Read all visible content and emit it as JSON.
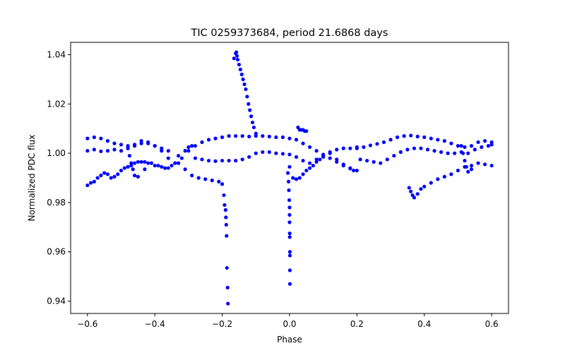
{
  "chart_data": {
    "type": "scatter",
    "title": "TIC 0259373684, period 21.6868 days",
    "xlabel": "Phase",
    "ylabel": "Normalized PDC flux",
    "xlim": [
      -0.65,
      0.65
    ],
    "ylim": [
      0.935,
      1.045
    ],
    "xticks": [
      -0.6,
      -0.4,
      -0.2,
      0.0,
      0.2,
      0.4,
      0.6
    ],
    "xtick_labels": [
      "−0.6",
      "−0.4",
      "−0.2",
      "0.0",
      "0.2",
      "0.4",
      "0.6"
    ],
    "yticks": [
      0.94,
      0.96,
      0.98,
      1.0,
      1.02,
      1.04
    ],
    "ytick_labels": [
      "0.94",
      "0.96",
      "0.98",
      "1.00",
      "1.02",
      "1.04"
    ],
    "grid": false,
    "marker_color": "#0000ff",
    "series": [
      {
        "points": [
          [
            -0.6,
            1.006
          ],
          [
            -0.58,
            1.0065
          ],
          [
            -0.56,
            1.006
          ],
          [
            -0.54,
            1.005
          ],
          [
            -0.52,
            1.004
          ],
          [
            -0.5,
            1.0035
          ],
          [
            -0.48,
            1.003
          ],
          [
            -0.46,
            1.0035
          ],
          [
            -0.44,
            1.005
          ],
          [
            -0.42,
            1.0045
          ],
          [
            -0.4,
            1.003
          ],
          [
            -0.38,
            1.001
          ],
          [
            -0.36,
            0.998
          ],
          [
            -0.34,
            0.996
          ],
          [
            -0.6,
            1.001
          ],
          [
            -0.58,
            1.0015
          ],
          [
            -0.56,
            1.0008
          ],
          [
            -0.54,
            1.001
          ],
          [
            -0.52,
            1.0015
          ],
          [
            -0.5,
            1.001
          ],
          [
            -0.48,
            1.002
          ],
          [
            -0.46,
            1.003
          ],
          [
            -0.44,
            1.004
          ],
          [
            -0.42,
            1.004
          ],
          [
            -0.4,
            1.003
          ],
          [
            -0.38,
            1.002
          ],
          [
            -0.36,
            1.001
          ],
          [
            -0.6,
            0.987
          ],
          [
            -0.59,
            0.988
          ],
          [
            -0.58,
            0.9885
          ],
          [
            -0.57,
            0.99
          ],
          [
            -0.56,
            0.991
          ],
          [
            -0.55,
            0.992
          ],
          [
            -0.54,
            0.9915
          ],
          [
            -0.53,
            0.99
          ],
          [
            -0.52,
            0.9905
          ],
          [
            -0.51,
            0.9915
          ],
          [
            -0.5,
            0.993
          ],
          [
            -0.49,
            0.994
          ],
          [
            -0.48,
            0.9945
          ],
          [
            -0.47,
            0.995
          ],
          [
            -0.46,
            0.996
          ],
          [
            -0.45,
            0.9965
          ],
          [
            -0.44,
            0.9965
          ],
          [
            -0.43,
            0.9965
          ],
          [
            -0.42,
            0.996
          ],
          [
            -0.41,
            0.996
          ],
          [
            -0.4,
            0.995
          ],
          [
            -0.39,
            0.995
          ],
          [
            -0.38,
            0.9945
          ],
          [
            -0.37,
            0.994
          ],
          [
            -0.36,
            0.994
          ],
          [
            -0.35,
            0.995
          ],
          [
            -0.34,
            0.996
          ],
          [
            -0.33,
            0.996
          ],
          [
            -0.48,
            1.002
          ],
          [
            -0.475,
            0.999
          ],
          [
            -0.47,
            0.996
          ],
          [
            -0.465,
            0.9935
          ],
          [
            -0.46,
            0.991
          ],
          [
            -0.45,
            0.9905
          ],
          [
            -0.43,
            0.9935
          ],
          [
            -0.33,
            0.996
          ],
          [
            -0.31,
            0.9935
          ],
          [
            -0.29,
            0.991
          ],
          [
            -0.27,
            0.99
          ],
          [
            -0.25,
            0.9895
          ],
          [
            -0.23,
            0.989
          ],
          [
            -0.21,
            0.9885
          ],
          [
            -0.2,
            0.9875
          ],
          [
            -0.195,
            0.983
          ],
          [
            -0.193,
            0.979
          ],
          [
            -0.19,
            0.977
          ],
          [
            -0.189,
            0.974
          ],
          [
            -0.188,
            0.971
          ],
          [
            -0.187,
            0.9665
          ],
          [
            -0.186,
            0.9535
          ],
          [
            -0.184,
            0.9455
          ],
          [
            -0.183,
            0.939
          ],
          [
            -0.32,
            0.998
          ],
          [
            -0.3,
            1.001
          ],
          [
            -0.28,
            1.003
          ],
          [
            -0.26,
            1.0045
          ],
          [
            -0.24,
            1.0055
          ],
          [
            -0.22,
            1.006
          ],
          [
            -0.2,
            1.0065
          ],
          [
            -0.18,
            1.007
          ],
          [
            -0.16,
            1.007
          ],
          [
            -0.14,
            1.007
          ],
          [
            -0.12,
            1.0068
          ],
          [
            -0.1,
            1.007
          ],
          [
            -0.08,
            1.007
          ],
          [
            -0.06,
            1.0068
          ],
          [
            -0.04,
            1.0065
          ],
          [
            -0.02,
            1.0065
          ],
          [
            0.0,
            1.006
          ],
          [
            0.02,
            1.0055
          ],
          [
            0.04,
            1.004
          ],
          [
            0.06,
            1.0025
          ],
          [
            0.08,
            1.001
          ],
          [
            0.1,
            0.9995
          ],
          [
            0.12,
            0.998
          ],
          [
            0.14,
            0.9965
          ],
          [
            0.16,
            0.995
          ],
          [
            0.18,
            0.9938
          ],
          [
            0.2,
            0.993
          ],
          [
            -0.33,
            0.999
          ],
          [
            -0.31,
            1.001
          ],
          [
            -0.3,
            1.0025
          ],
          [
            -0.29,
            1.003
          ],
          [
            -0.28,
            0.998
          ],
          [
            -0.26,
            0.9975
          ],
          [
            -0.24,
            0.997
          ],
          [
            -0.22,
            0.9968
          ],
          [
            -0.2,
            0.997
          ],
          [
            -0.18,
            0.997
          ],
          [
            -0.16,
            0.997
          ],
          [
            -0.14,
            0.9975
          ],
          [
            -0.12,
            0.9985
          ],
          [
            -0.1,
            1.0
          ],
          [
            -0.08,
            1.0005
          ],
          [
            -0.06,
            1.0005
          ],
          [
            -0.04,
            1.0
          ],
          [
            -0.02,
            0.9998
          ],
          [
            0.0,
            0.9995
          ],
          [
            0.02,
            0.9985
          ],
          [
            0.04,
            0.997
          ],
          [
            0.06,
            0.996
          ],
          [
            0.08,
            0.9975
          ],
          [
            0.1,
            0.999
          ],
          [
            0.12,
            1.0005
          ],
          [
            0.14,
            1.0015
          ],
          [
            0.16,
            1.002
          ],
          [
            0.18,
            1.002
          ],
          [
            0.2,
            1.0025
          ],
          [
            -0.005,
            0.992
          ],
          [
            -0.003,
            0.9885
          ],
          [
            -0.002,
            0.985
          ],
          [
            -0.001,
            0.981
          ],
          [
            0.0,
            0.978
          ],
          [
            0.0,
            0.975
          ],
          [
            0.0,
            0.972
          ],
          [
            0.0005,
            0.9675
          ],
          [
            0.0005,
            0.966
          ],
          [
            0.001,
            0.96
          ],
          [
            0.001,
            0.9585
          ],
          [
            0.001,
            0.9525
          ],
          [
            0.001,
            0.947
          ],
          [
            0.0,
            0.9945
          ],
          [
            0.01,
            0.99
          ],
          [
            0.02,
            0.9895
          ],
          [
            0.03,
            0.99
          ],
          [
            0.04,
            0.9915
          ],
          [
            0.05,
            0.993
          ],
          [
            0.06,
            0.994
          ],
          [
            0.07,
            0.995
          ],
          [
            0.08,
            0.9965
          ],
          [
            0.09,
            0.9975
          ],
          [
            0.1,
            0.9985
          ],
          [
            0.025,
            1.0105
          ],
          [
            0.03,
            1.0095
          ],
          [
            0.035,
            1.0095
          ],
          [
            0.04,
            1.0095
          ],
          [
            0.045,
            1.009
          ],
          [
            0.05,
            1.009
          ],
          [
            0.12,
            1.0
          ],
          [
            0.14,
            0.9975
          ],
          [
            0.16,
            0.9955
          ],
          [
            0.18,
            0.994
          ],
          [
            0.19,
            0.993
          ],
          [
            0.2,
            1.002
          ],
          [
            0.22,
            1.0025
          ],
          [
            0.24,
            1.0032
          ],
          [
            0.26,
            1.0038
          ],
          [
            0.28,
            1.0045
          ],
          [
            0.3,
            1.0055
          ],
          [
            0.32,
            1.0065
          ],
          [
            0.34,
            1.007
          ],
          [
            0.36,
            1.0072
          ],
          [
            0.38,
            1.0068
          ],
          [
            0.4,
            1.0065
          ],
          [
            0.42,
            1.006
          ],
          [
            0.44,
            1.0055
          ],
          [
            0.46,
            1.005
          ],
          [
            0.48,
            1.004
          ],
          [
            0.5,
            1.003
          ],
          [
            0.52,
            1.0025
          ],
          [
            0.54,
            1.003
          ],
          [
            0.56,
            1.0045
          ],
          [
            0.58,
            1.005
          ],
          [
            0.6,
            1.0045
          ],
          [
            0.21,
            0.9975
          ],
          [
            0.23,
            0.997
          ],
          [
            0.25,
            0.9965
          ],
          [
            0.27,
            0.996
          ],
          [
            0.29,
            0.9975
          ],
          [
            0.31,
            0.999
          ],
          [
            0.33,
            1.0005
          ],
          [
            0.35,
            1.0015
          ],
          [
            0.37,
            1.002
          ],
          [
            0.39,
            1.002
          ],
          [
            0.41,
            1.0015
          ],
          [
            0.43,
            1.001
          ],
          [
            0.45,
            1.0005
          ],
          [
            0.47,
            1.0
          ],
          [
            0.49,
            1.0
          ],
          [
            0.51,
            1.0005
          ],
          [
            0.53,
            1.0
          ],
          [
            0.55,
            1.0015
          ],
          [
            0.57,
            1.0025
          ],
          [
            0.59,
            1.003
          ],
          [
            0.6,
            1.0035
          ],
          [
            0.355,
            0.986
          ],
          [
            0.36,
            0.9845
          ],
          [
            0.365,
            0.983
          ],
          [
            0.37,
            0.982
          ],
          [
            0.38,
            0.9835
          ],
          [
            0.39,
            0.9855
          ],
          [
            0.4,
            0.9865
          ],
          [
            0.42,
            0.988
          ],
          [
            0.44,
            0.9895
          ],
          [
            0.46,
            0.9905
          ],
          [
            0.48,
            0.9915
          ],
          [
            0.5,
            0.993
          ],
          [
            0.52,
            0.9945
          ],
          [
            0.54,
            0.995
          ],
          [
            0.56,
            0.996
          ],
          [
            0.58,
            0.9955
          ],
          [
            0.6,
            0.995
          ],
          [
            0.51,
            1.003
          ],
          [
            0.515,
            1.0
          ],
          [
            0.52,
            0.997
          ],
          [
            0.525,
            0.9945
          ],
          [
            0.53,
            0.9925
          ],
          [
            0.54,
            0.9935
          ],
          [
            -0.16,
            1.0405
          ],
          [
            -0.158,
            1.041
          ],
          [
            -0.156,
            1.0395
          ],
          [
            -0.154,
            1.038
          ],
          [
            -0.15,
            1.036
          ],
          [
            -0.146,
            1.034
          ],
          [
            -0.142,
            1.032
          ],
          [
            -0.138,
            1.03
          ],
          [
            -0.134,
            1.028
          ],
          [
            -0.13,
            1.026
          ],
          [
            -0.126,
            1.023
          ],
          [
            -0.122,
            1.02
          ],
          [
            -0.118,
            1.0175
          ],
          [
            -0.114,
            1.015
          ],
          [
            -0.11,
            1.0125
          ],
          [
            -0.106,
            1.0105
          ],
          [
            -0.1,
            1.008
          ],
          [
            -0.165,
            1.0385
          ]
        ]
      }
    ]
  }
}
